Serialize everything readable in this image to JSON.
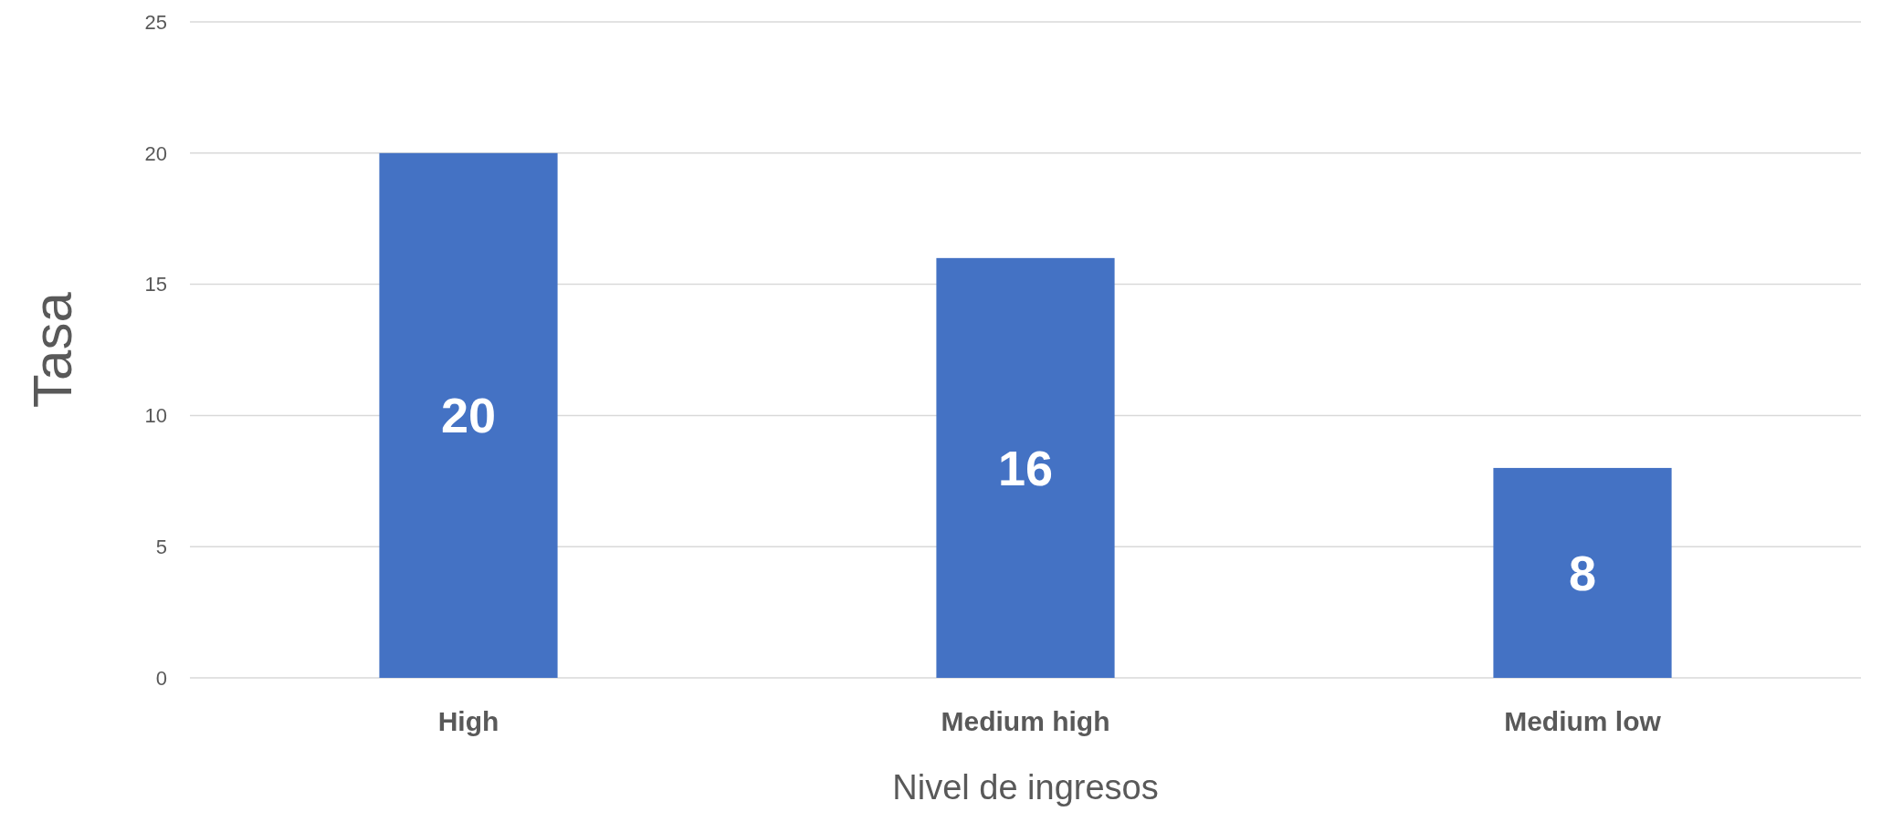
{
  "chart_data": {
    "type": "bar",
    "xlabel": "Nivel de ingresos",
    "ylabel": "Tasa",
    "categories": [
      "High",
      "Medium high",
      "Medium low"
    ],
    "values": [
      20,
      16,
      8
    ],
    "color": "#4472c4",
    "ylim": [
      0,
      25
    ],
    "yticks": [
      0,
      5,
      10,
      15,
      20,
      25
    ],
    "grid": "y",
    "data_labels": true
  }
}
